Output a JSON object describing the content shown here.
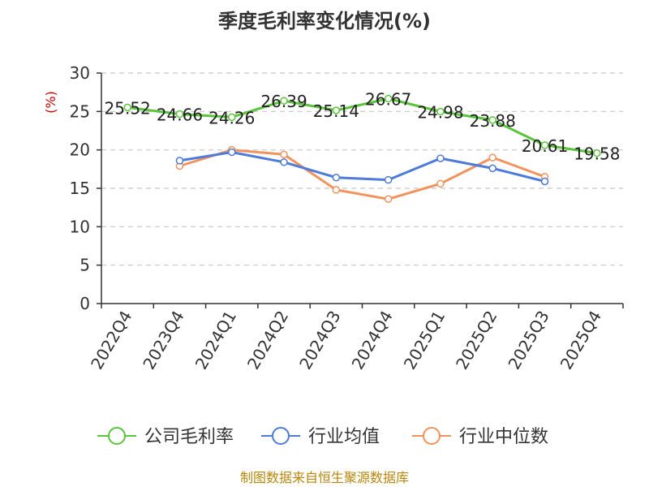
{
  "chart_data": {
    "type": "line",
    "title": "季度毛利率变化情况(%)",
    "ylabel": "(%)",
    "ylim": [
      0,
      30
    ],
    "yticks": [
      0,
      5,
      10,
      15,
      20,
      25,
      30
    ],
    "grid": true,
    "legend_position": "bottom",
    "categories": [
      "2022Q4",
      "2023Q4",
      "2024Q1",
      "2024Q2",
      "2024Q3",
      "2024Q4",
      "2025Q1",
      "2025Q2",
      "2025Q3",
      "2025Q4"
    ],
    "series": [
      {
        "name": "公司毛利率",
        "color": "#5ac43b",
        "values": [
          25.52,
          24.66,
          24.26,
          26.39,
          25.14,
          26.67,
          24.98,
          23.88,
          20.61,
          19.58
        ],
        "labels": [
          "25.52",
          "24.66",
          "24.26",
          "26.39",
          "25.14",
          "26.67",
          "24.98",
          "23.88",
          "20.61",
          "19.58"
        ]
      },
      {
        "name": "行业均值",
        "color": "#4e7bd9",
        "values": [
          null,
          18.6,
          19.7,
          18.4,
          16.4,
          16.1,
          18.9,
          17.6,
          15.9,
          null
        ]
      },
      {
        "name": "行业中位数",
        "color": "#f2935e",
        "values": [
          null,
          17.9,
          20.0,
          19.4,
          14.8,
          13.6,
          15.6,
          19.0,
          16.5,
          null
        ]
      }
    ]
  },
  "footer": {
    "source": "制图数据来自恒生聚源数据库"
  }
}
